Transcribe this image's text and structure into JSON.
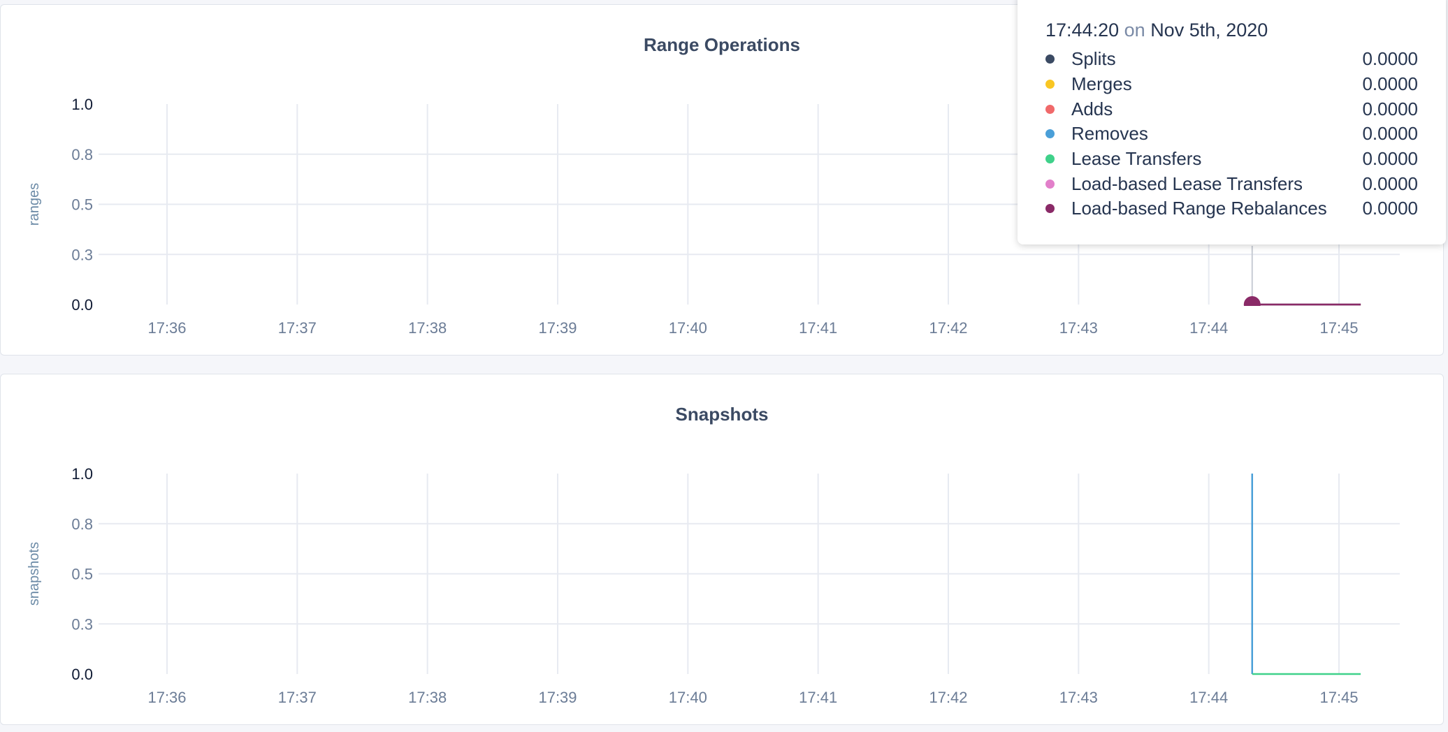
{
  "chart_data": [
    {
      "type": "line",
      "title": "Range Operations",
      "ylabel": "ranges",
      "ylim": [
        0,
        1
      ],
      "yticks": [
        "0.0",
        "0.3",
        "0.5",
        "0.8",
        "1.0"
      ],
      "xticks": [
        "17:36",
        "17:37",
        "17:38",
        "17:39",
        "17:40",
        "17:41",
        "17:42",
        "17:43",
        "17:44",
        "17:45"
      ],
      "grid": true,
      "series": [
        {
          "name": "Splits",
          "color": "#3b4a63",
          "points": [
            [
              "17:44:20",
              0
            ],
            [
              "17:45:10",
              0
            ]
          ]
        },
        {
          "name": "Merges",
          "color": "#f9c623",
          "points": [
            [
              "17:44:20",
              0
            ],
            [
              "17:45:10",
              0
            ]
          ]
        },
        {
          "name": "Adds",
          "color": "#f0696a",
          "points": [
            [
              "17:44:20",
              0
            ],
            [
              "17:45:10",
              0
            ]
          ]
        },
        {
          "name": "Removes",
          "color": "#4a9fd8",
          "points": [
            [
              "17:44:20",
              0
            ],
            [
              "17:45:10",
              0
            ]
          ]
        },
        {
          "name": "Lease Transfers",
          "color": "#3fd18a",
          "points": [
            [
              "17:44:20",
              0
            ],
            [
              "17:45:10",
              0
            ]
          ]
        },
        {
          "name": "Load-based Lease Transfers",
          "color": "#e27fca",
          "points": [
            [
              "17:44:20",
              0
            ],
            [
              "17:45:10",
              0
            ]
          ]
        },
        {
          "name": "Load-based Range Rebalances",
          "color": "#8a2a67",
          "points": [
            [
              "17:44:20",
              0
            ],
            [
              "17:45:10",
              0
            ]
          ]
        }
      ],
      "tooltip": {
        "time": "17:44:20",
        "on": "on",
        "date": "Nov 5th, 2020",
        "values": [
          "0.0000",
          "0.0000",
          "0.0000",
          "0.0000",
          "0.0000",
          "0.0000",
          "0.0000"
        ]
      }
    },
    {
      "type": "line",
      "title": "Snapshots",
      "ylabel": "snapshots",
      "ylim": [
        0,
        1
      ],
      "yticks": [
        "0.0",
        "0.3",
        "0.5",
        "0.8",
        "1.0"
      ],
      "xticks": [
        "17:36",
        "17:37",
        "17:38",
        "17:39",
        "17:40",
        "17:41",
        "17:42",
        "17:43",
        "17:44",
        "17:45"
      ],
      "grid": true,
      "series": [
        {
          "color": "#4a9fd8",
          "points": [
            [
              "17:44:20",
              1
            ],
            [
              "17:44:20",
              0
            ]
          ]
        },
        {
          "color": "#3fd18a",
          "points": [
            [
              "17:44:20",
              0
            ],
            [
              "17:45:10",
              0
            ]
          ]
        }
      ]
    }
  ]
}
